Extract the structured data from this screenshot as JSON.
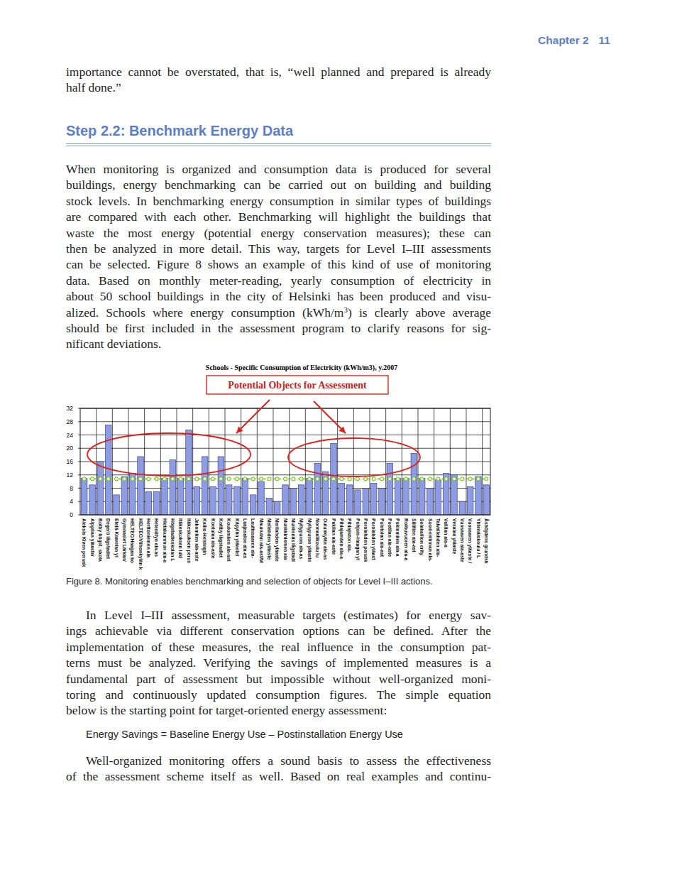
{
  "header": {
    "chapter": "Chapter 2",
    "page": "11"
  },
  "intro": {
    "lines": [
      "importance cannot be overstated, that is, “well planned and prepared is already",
      "half done.”"
    ]
  },
  "section_heading": "Step 2.2: Benchmark Energy Data",
  "paragraph_1": {
    "lines": [
      "When monitoring is organized and consumption data is produced for several",
      "buildings, energy benchmarking can be carried out on building and building",
      "stock levels. In benchmarking energy consumption in similar types of buildings",
      "are compared with each other. Benchmarking will highlight the buildings that",
      "waste the most energy (potential energy conservation measures); these can",
      "then be analyzed in more detail. This way, targets for Level I–III assessments",
      "can be selected. Figure 8 shows an example of this kind of use of monitoring",
      "data. Based on monthly meter-reading, yearly consumption of electricity in",
      "about 50 school buildings in the city of Helsinki has been produced and visu-",
      {
        "runs": [
          {
            "text": "alized. Schools where energy consumption (kWh/m"
          },
          {
            "text": "3",
            "sup": true
          },
          {
            "text": ") is clearly above average"
          }
        ]
      },
      "should be first included in the assessment program to clarify reasons for sig-",
      "nificant deviations."
    ]
  },
  "chart_data": {
    "type": "bar",
    "title": "Schools - Specific Consumption of Electricity (kWh/m3), y.2007",
    "annotations": [
      "Potential Objects for Assessment"
    ],
    "categories": [
      "Aleksis Kiven perusk",
      "Alppilan yläaste/",
      "Botby högst. skola",
      "Degerö lågstadiet",
      "Etelä-Kaarelan yl",
      "Gymnasiet Lärkan/",
      "HELTEC/Haagan ko",
      "HELTEC/Vilhonkylän k",
      "Herttoniemen ala",
      "Heteniityn ala-as",
      "Hietakummun ala-a",
      "Högstadieskolan L",
      "Itäkeskuksen luki",
      "Itäkeskuksen perus",
      "Jakomäen ala-aste",
      "Kallio-Helsingin",
      "Kontulan ala-aste",
      "Kottby lågstadiet",
      "Koulumäen ala-ast",
      "Käpylän yläaste/",
      "Laajasalon ala-as",
      "Lauttasaaren ala-",
      "Maunulan ala-ast/M",
      "Meilahden yläaste",
      "Merilahden yläaste",
      "Munkkiniemen ala",
      "Munksnäs lågstadi",
      "Myllypuron ala-as",
      "Myllypuron yläaste",
      "Normaalikoulu lu",
      "Oulunkylän ala-as",
      "Pakilan ala-aste",
      "Pihlajamäen ala-a",
      "Pihlajiston ala-",
      "Pohjois-Haagan yl",
      "Porolahden perusk",
      "Porolahden yläast",
      "Puistolan ala-ast",
      "Puotilan ala-aste",
      "Pukinmäen ala-a",
      "Roihuvuoren ala-a",
      "Siilitien ala-ast",
      "Solakallion erity",
      "Suomenlinnan ala-",
      "Taivallahden ala-",
      "Vallilan ala-a",
      "Vesalan yläaste",
      "Vuosaaren ala-aste",
      "Vuosaaren yläaste /",
      "Yhtenäiskoulu / L",
      "Åshöjdens grundsk"
    ],
    "series": [
      {
        "type": "bar",
        "color": "#8d9ce3",
        "values": [
          11,
          9,
          16,
          27,
          6,
          11.5,
          12.5,
          17.5,
          7,
          7,
          11,
          16.5,
          11,
          25.5,
          8.5,
          17.5,
          8.5,
          17.5,
          9,
          8.5,
          11,
          6,
          10,
          5,
          4,
          9,
          8,
          9,
          11,
          15.5,
          13,
          21.5,
          9.5,
          9,
          7.5,
          8,
          9.5,
          8,
          15.5,
          11,
          11,
          18.5,
          11,
          8,
          10.5,
          12.5,
          12,
          4,
          8.5,
          11.5,
          9
        ]
      },
      {
        "type": "line",
        "color": "#5cc21a",
        "marker": "circle",
        "line_style": "dashed",
        "values": [
          10.8,
          10.8,
          10.8,
          10.8,
          10.8,
          10.8,
          10.8,
          10.8,
          10.8,
          10.8,
          10.8,
          10.8,
          10.8,
          10.8,
          10.8,
          10.8,
          10.8,
          10.8,
          10.8,
          10.8,
          10.8,
          10.8,
          10.8,
          10.8,
          10.8,
          10.8,
          10.8,
          10.8,
          10.8,
          10.8,
          10.8,
          10.8,
          10.8,
          10.8,
          10.8,
          10.8,
          10.8,
          10.8,
          10.8,
          10.8,
          10.8,
          10.8,
          10.8,
          10.8,
          10.8,
          10.8,
          10.8,
          10.8,
          10.8,
          10.8,
          10.8
        ]
      }
    ],
    "ylim": [
      0,
      32
    ],
    "yticks": [
      0,
      4,
      8,
      12,
      16,
      20,
      24,
      28,
      32
    ],
    "grid": true
  },
  "figure_caption": "Figure 8. Monitoring enables benchmarking and selection of objects for Level I–III actions.",
  "paragraph_2": {
    "lines": [
      "In Level I–III assessment, measurable targets (estimates) for energy sav-",
      "ings achievable via different conservation options can be defined. After the",
      "implementation of these measures, the real influence in the consumption pat-",
      "terns must be analyzed. Verifying the savings of implemented measures is a",
      "fundamental part of assessment but impossible without well-organized moni-",
      "toring and continuously updated consumption figures. The simple equation",
      "below is the starting point for target-oriented energy assessment:"
    ]
  },
  "equation": "Energy Savings = Baseline Energy Use – Postinstallation Energy Use",
  "paragraph_3": {
    "lines": [
      "Well-organized monitoring offers a sound basis to assess the effectiveness",
      "of the assessment scheme itself as well. Based on real examples and continu-"
    ]
  }
}
